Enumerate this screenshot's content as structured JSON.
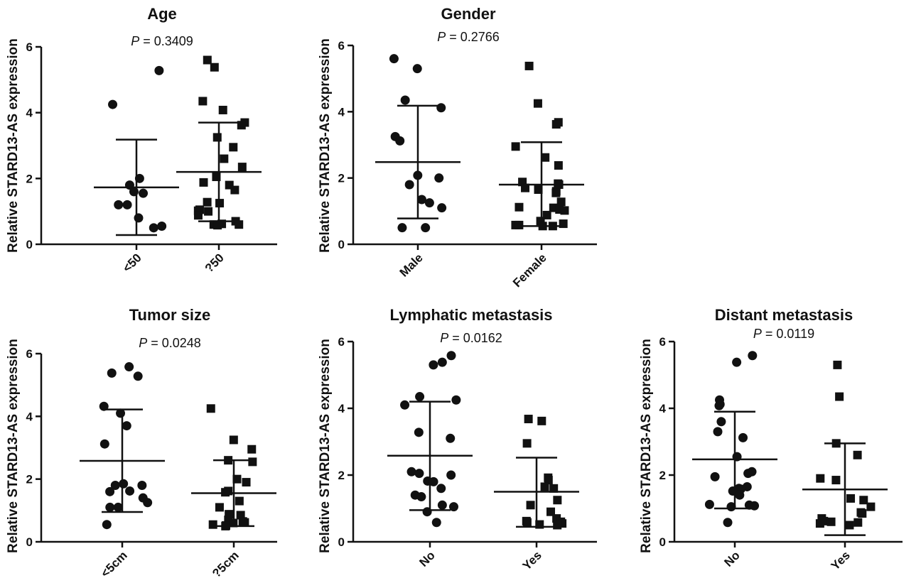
{
  "chart_data": [
    {
      "type": "scatter",
      "title": "Age",
      "p_prefix": "P",
      "p_value": "= 0.3409",
      "ylabel": "Relative  STARD13-AS expression",
      "ylim": [
        0,
        6
      ],
      "yticks": [
        "0",
        "2",
        "4",
        "6"
      ],
      "categories": [
        "<50",
        "?50"
      ],
      "markers": [
        "circle",
        "square"
      ],
      "series": [
        {
          "values": [
            5.28,
            4.25,
            2.0,
            1.8,
            1.6,
            1.55,
            1.2,
            1.2,
            0.8,
            0.55,
            0.5
          ],
          "mean": 1.73,
          "sd_low": 0.28,
          "sd_high": 3.18
        },
        {
          "values": [
            5.6,
            5.38,
            4.35,
            4.08,
            3.7,
            3.62,
            3.25,
            2.95,
            2.6,
            2.35,
            2.05,
            1.88,
            1.8,
            1.65,
            1.28,
            1.25,
            1.05,
            1.02,
            1.0,
            0.88,
            0.7,
            0.62,
            0.6,
            0.6,
            0.58
          ],
          "mean": 2.2,
          "sd_low": 0.7,
          "sd_high": 3.7
        }
      ]
    },
    {
      "type": "scatter",
      "title": "Gender",
      "p_prefix": "P",
      "p_value": "= 0.2766",
      "ylabel": "Relative  STARD13-AS expression",
      "ylim": [
        0,
        6
      ],
      "yticks": [
        "0",
        "2",
        "4",
        "6"
      ],
      "categories": [
        "Male",
        "Female"
      ],
      "markers": [
        "circle",
        "square"
      ],
      "series": [
        {
          "values": [
            5.6,
            5.3,
            4.35,
            4.12,
            3.25,
            3.12,
            2.08,
            2.0,
            1.8,
            1.35,
            1.25,
            1.1,
            0.5,
            0.5
          ],
          "mean": 2.48,
          "sd_low": 0.78,
          "sd_high": 4.18
        },
        {
          "values": [
            5.38,
            4.25,
            3.68,
            3.62,
            2.95,
            2.62,
            2.38,
            1.88,
            1.83,
            1.8,
            1.7,
            1.65,
            1.6,
            1.55,
            1.28,
            1.12,
            1.1,
            1.05,
            1.02,
            0.88,
            0.7,
            0.62,
            0.58,
            0.58,
            0.55,
            0.55
          ],
          "mean": 1.8,
          "sd_low": 0.55,
          "sd_high": 3.08
        }
      ]
    },
    {
      "type": "scatter",
      "title": "Tumor size",
      "p_prefix": "P",
      "p_value": "= 0.0248",
      "ylabel": "Relative  STARD13-AS expression",
      "ylim": [
        0,
        6
      ],
      "yticks": [
        "0",
        "2",
        "4",
        "6"
      ],
      "categories": [
        "<5cm",
        "?5cm"
      ],
      "markers": [
        "circle",
        "square"
      ],
      "series": [
        {
          "values": [
            5.58,
            5.38,
            5.28,
            4.32,
            4.1,
            3.7,
            3.12,
            1.85,
            1.8,
            1.8,
            1.62,
            1.6,
            1.4,
            1.25,
            1.1,
            1.1,
            0.55
          ],
          "mean": 2.58,
          "sd_low": 0.95,
          "sd_high": 4.22
        },
        {
          "values": [
            4.25,
            3.25,
            2.95,
            2.6,
            2.55,
            2.0,
            1.9,
            1.62,
            1.58,
            1.3,
            1.1,
            0.88,
            0.85,
            0.7,
            0.65,
            0.62,
            0.6,
            0.55,
            0.52,
            0.5
          ],
          "mean": 1.55,
          "sd_low": 0.5,
          "sd_high": 2.6
        }
      ]
    },
    {
      "type": "scatter",
      "title": "Lymphatic metastasis",
      "p_prefix": "P",
      "p_value": "= 0.0162",
      "ylabel": "Relative  STARD13-AS expression",
      "ylim": [
        0,
        6
      ],
      "yticks": [
        "0",
        "2",
        "4",
        "6"
      ],
      "categories": [
        "No",
        "Yes"
      ],
      "markers": [
        "circle",
        "square"
      ],
      "series": [
        {
          "values": [
            5.58,
            5.38,
            5.3,
            4.35,
            4.25,
            4.1,
            3.28,
            3.1,
            2.1,
            2.05,
            2.0,
            1.82,
            1.8,
            1.6,
            1.4,
            1.35,
            1.1,
            1.05,
            0.9,
            0.58
          ],
          "mean": 2.58,
          "sd_low": 0.95,
          "sd_high": 4.2
        },
        {
          "values": [
            3.68,
            3.62,
            2.95,
            1.92,
            1.85,
            1.65,
            1.6,
            1.25,
            1.1,
            0.9,
            0.7,
            0.62,
            0.6,
            0.58,
            0.55,
            0.52,
            0.5
          ],
          "mean": 1.5,
          "sd_low": 0.45,
          "sd_high": 2.52
        }
      ]
    },
    {
      "type": "scatter",
      "title": "Distant metastasis",
      "p_prefix": "P",
      "p_value": "= 0.0119",
      "ylabel": "Relative  STARD13-AS expression",
      "ylim": [
        0,
        6
      ],
      "yticks": [
        "0",
        "2",
        "4",
        "6"
      ],
      "categories": [
        "No",
        "Yes"
      ],
      "markers": [
        "circle",
        "square"
      ],
      "series": [
        {
          "values": [
            5.58,
            5.38,
            4.25,
            4.12,
            4.08,
            3.6,
            3.3,
            3.12,
            2.55,
            2.1,
            2.05,
            1.95,
            1.65,
            1.6,
            1.58,
            1.52,
            1.4,
            1.12,
            1.1,
            1.08,
            1.05,
            0.58
          ],
          "mean": 2.47,
          "sd_low": 1.0,
          "sd_high": 3.9
        },
        {
          "values": [
            5.3,
            4.35,
            2.95,
            2.6,
            1.9,
            1.85,
            1.3,
            1.25,
            1.05,
            0.88,
            0.85,
            0.7,
            0.62,
            0.6,
            0.58,
            0.55,
            0.5
          ],
          "mean": 1.57,
          "sd_low": 0.2,
          "sd_high": 2.95
        }
      ]
    }
  ]
}
